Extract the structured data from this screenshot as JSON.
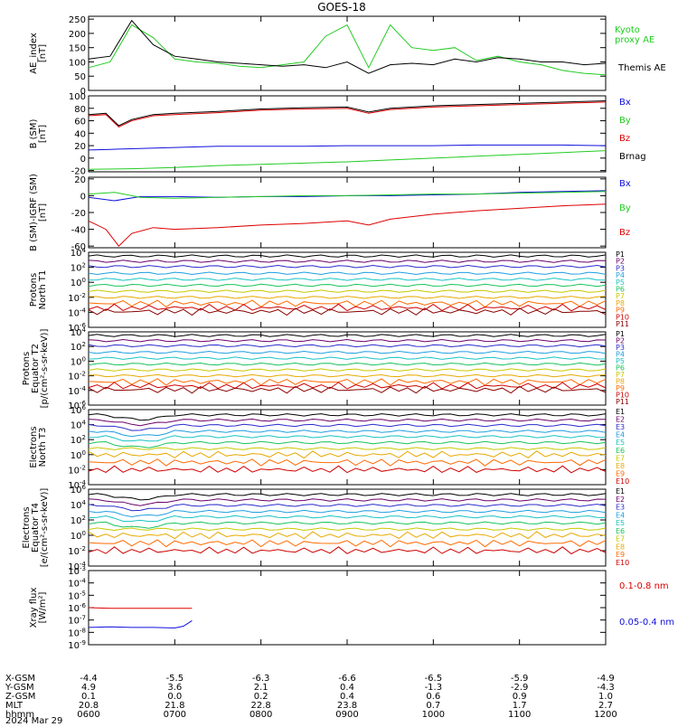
{
  "title": "GOES-18",
  "colors": {
    "black": "#000000",
    "green": "#22cc22",
    "blue": "#1010dd",
    "red": "#dd0000",
    "series": [
      "#000000",
      "#6a006a",
      "#2b2bcc",
      "#1f9fe0",
      "#19c3c3",
      "#19c35a",
      "#c8c800",
      "#e8a800",
      "#ff6a00",
      "#d00000",
      "#8a0000"
    ]
  },
  "bottom_axis": {
    "rows": [
      {
        "label": "X-GSM",
        "values": [
          "-4.4",
          "-5.5",
          "-6.3",
          "-6.6",
          "-6.5",
          "-5.9",
          "-4.9"
        ]
      },
      {
        "label": "Y-GSM",
        "values": [
          "4.9",
          "3.6",
          "2.1",
          "0.4",
          "-1.3",
          "-2.9",
          "-4.3"
        ]
      },
      {
        "label": "Z-GSM",
        "values": [
          "0.1",
          "0.0",
          "0.2",
          "0.4",
          "0.6",
          "0.9",
          "1.0"
        ]
      },
      {
        "label": "MLT",
        "values": [
          "20.8",
          "21.8",
          "22.8",
          "23.8",
          "0.7",
          "1.7",
          "2.7"
        ]
      },
      {
        "label": "hhmm",
        "values": [
          "0600",
          "0700",
          "0800",
          "0900",
          "1000",
          "1100",
          "1200"
        ]
      }
    ],
    "date": "2024 Mar 29"
  },
  "chart_data": [
    {
      "type": "line",
      "ylabel": [
        "AE_index",
        "[nT]"
      ],
      "ylim": [
        0,
        260
      ],
      "yticks": [
        "250",
        "200",
        "150",
        "100",
        "50",
        "0"
      ],
      "ytick_values": [
        250,
        200,
        150,
        100,
        50,
        0
      ],
      "legend": [
        {
          "text": "Kyoto",
          "color": "green"
        },
        {
          "text": "proxy AE",
          "color": "green"
        },
        {
          "text": "Themis AE",
          "color": "black"
        }
      ],
      "series": [
        {
          "name": "Kyoto proxy AE",
          "color": "green",
          "x": [
            6.0,
            6.25,
            6.5,
            6.75,
            7.0,
            7.25,
            7.5,
            7.75,
            8.0,
            8.25,
            8.5,
            8.75,
            9.0,
            9.25,
            9.5,
            9.75,
            10.0,
            10.25,
            10.5,
            10.75,
            11.0,
            11.25,
            11.5,
            11.75,
            12.0
          ],
          "y": [
            80,
            100,
            230,
            185,
            110,
            100,
            95,
            85,
            80,
            90,
            100,
            190,
            230,
            80,
            230,
            150,
            140,
            150,
            105,
            120,
            100,
            90,
            70,
            60,
            55
          ]
        },
        {
          "name": "Themis AE",
          "color": "black",
          "x": [
            6.0,
            6.25,
            6.5,
            6.75,
            7.0,
            7.25,
            7.5,
            7.75,
            8.0,
            8.25,
            8.5,
            8.75,
            9.0,
            9.25,
            9.5,
            9.75,
            10.0,
            10.25,
            10.5,
            10.75,
            11.0,
            11.25,
            11.5,
            11.75,
            12.0
          ],
          "y": [
            110,
            120,
            245,
            160,
            120,
            110,
            100,
            95,
            90,
            85,
            90,
            80,
            100,
            60,
            90,
            95,
            90,
            110,
            100,
            115,
            110,
            100,
            100,
            90,
            95
          ]
        }
      ]
    },
    {
      "type": "line",
      "ylabel": [
        "B (SM)",
        "[nT]"
      ],
      "ylim": [
        -22,
        100
      ],
      "yticks": [
        "100",
        "80",
        "60",
        "40",
        "20",
        "0",
        "-20"
      ],
      "ytick_values": [
        100,
        80,
        60,
        40,
        20,
        0,
        -20
      ],
      "legend": [
        {
          "text": "Bx",
          "color": "blue"
        },
        {
          "text": "By",
          "color": "green"
        },
        {
          "text": "Bz",
          "color": "red"
        },
        {
          "text": "Brnag",
          "color": "black"
        }
      ],
      "series": [
        {
          "name": "Bx",
          "color": "blue",
          "x": [
            6.0,
            6.25,
            6.5,
            7.0,
            7.5,
            8.0,
            8.5,
            9.0,
            9.5,
            10.0,
            10.5,
            11.0,
            11.5,
            12.0
          ],
          "y": [
            13,
            14,
            15,
            17,
            19,
            19,
            19,
            20,
            20,
            20,
            21,
            21,
            21,
            20
          ]
        },
        {
          "name": "By",
          "color": "green",
          "x": [
            6.0,
            6.5,
            7.0,
            7.5,
            8.0,
            8.5,
            9.0,
            9.5,
            10.0,
            10.5,
            11.0,
            11.5,
            12.0
          ],
          "y": [
            -18,
            -17,
            -15,
            -12,
            -10,
            -8,
            -6,
            -3,
            0,
            3,
            6,
            9,
            12
          ]
        },
        {
          "name": "Bz",
          "color": "red",
          "x": [
            6.0,
            6.2,
            6.35,
            6.5,
            6.75,
            7.0,
            7.5,
            8.0,
            8.5,
            9.0,
            9.25,
            9.5,
            10.0,
            10.5,
            11.0,
            11.5,
            12.0
          ],
          "y": [
            68,
            70,
            50,
            60,
            68,
            70,
            73,
            77,
            79,
            80,
            72,
            78,
            82,
            84,
            86,
            88,
            90
          ]
        },
        {
          "name": "Brnag",
          "color": "black",
          "x": [
            6.0,
            6.2,
            6.35,
            6.5,
            6.75,
            7.0,
            7.5,
            8.0,
            8.5,
            9.0,
            9.25,
            9.5,
            10.0,
            10.5,
            11.0,
            11.5,
            12.0
          ],
          "y": [
            70,
            72,
            52,
            62,
            70,
            72,
            75,
            79,
            81,
            82,
            74,
            80,
            84,
            86,
            88,
            90,
            92
          ]
        }
      ]
    },
    {
      "type": "line",
      "ylabel": [
        "B (SM)-IGRF (SM)",
        "[nT]"
      ],
      "ylim": [
        -62,
        22
      ],
      "yticks": [
        "20",
        "0",
        "-20",
        "-40",
        "-60"
      ],
      "ytick_values": [
        20,
        0,
        -20,
        -40,
        -60
      ],
      "legend": [
        {
          "text": "Bx",
          "color": "blue"
        },
        {
          "text": "By",
          "color": "green"
        },
        {
          "text": "Bz",
          "color": "red"
        }
      ],
      "series": [
        {
          "name": "Bx",
          "color": "blue",
          "x": [
            6.0,
            6.3,
            6.6,
            7.0,
            7.5,
            8.0,
            8.5,
            9.0,
            9.5,
            10.0,
            10.5,
            11.0,
            11.5,
            12.0
          ],
          "y": [
            -2,
            -6,
            -1,
            -1,
            -2,
            -1,
            -1,
            0,
            0,
            1,
            2,
            4,
            5,
            6
          ]
        },
        {
          "name": "By",
          "color": "green",
          "x": [
            6.0,
            6.3,
            6.6,
            7.0,
            7.5,
            8.0,
            8.5,
            9.0,
            9.5,
            10.0,
            10.5,
            11.0,
            11.5,
            12.0
          ],
          "y": [
            2,
            4,
            -2,
            -3,
            -2,
            -1,
            0,
            0,
            1,
            2,
            2,
            3,
            4,
            5
          ]
        },
        {
          "name": "Bz",
          "color": "red",
          "x": [
            6.0,
            6.2,
            6.35,
            6.5,
            6.75,
            7.0,
            7.5,
            8.0,
            8.5,
            9.0,
            9.25,
            9.5,
            10.0,
            10.5,
            11.0,
            11.5,
            12.0
          ],
          "y": [
            -30,
            -40,
            -60,
            -45,
            -38,
            -40,
            -38,
            -35,
            -33,
            -30,
            -35,
            -28,
            -22,
            -18,
            -15,
            -12,
            -10
          ]
        }
      ]
    },
    {
      "type": "line",
      "log": true,
      "ylabel": [
        "Protons",
        "North T1"
      ],
      "ylim": [
        -6,
        4
      ],
      "yticks": [
        "10^4",
        "10^2",
        "10^0",
        "10^-2",
        "10^-4",
        "10^-6"
      ],
      "ytick_values": [
        4,
        2,
        0,
        -2,
        -4,
        -6
      ],
      "legend": [
        "P1",
        "P2",
        "P3",
        "P4",
        "P5",
        "P6",
        "P7",
        "P8",
        "P9",
        "P10",
        "P11"
      ],
      "levels": [
        3.5,
        2.8,
        2.1,
        1.2,
        0.4,
        -0.4,
        -1.2,
        -2.0,
        -2.8,
        -3.4,
        -3.9
      ]
    },
    {
      "type": "line",
      "log": true,
      "ylabel": [
        "Protons",
        "Equator T2",
        "[p/(cm²-s-sr-keV)]"
      ],
      "ylim": [
        -6,
        4
      ],
      "yticks": [
        "10^4",
        "10^2",
        "10^0",
        "10^-2",
        "10^-4",
        "10^-6"
      ],
      "ytick_values": [
        4,
        2,
        0,
        -2,
        -4,
        -6
      ],
      "legend": [
        "P1",
        "P2",
        "P3",
        "P4",
        "P5",
        "P6",
        "P7",
        "P8",
        "P9",
        "P10",
        "P11"
      ],
      "levels": [
        3.5,
        2.8,
        2.1,
        1.2,
        0.4,
        -0.4,
        -1.2,
        -2.0,
        -2.8,
        -3.4,
        -3.9
      ]
    },
    {
      "type": "line",
      "log": true,
      "ylabel": [
        "Electrons",
        "North T3"
      ],
      "ylim": [
        -4,
        6
      ],
      "yticks": [
        "10^6",
        "10^4",
        "10^2",
        "10^0",
        "10^-2",
        "10^-4"
      ],
      "ytick_values": [
        6,
        4,
        2,
        0,
        -2,
        -4
      ],
      "legend": [
        "E1",
        "E2",
        "E3",
        "E4",
        "E5",
        "E6",
        "E7",
        "E8",
        "E9",
        "E10"
      ],
      "levels": [
        5.3,
        4.6,
        3.9,
        3.1,
        2.4,
        1.6,
        0.8,
        0.0,
        -1.0,
        -2.0
      ]
    },
    {
      "type": "line",
      "log": true,
      "ylabel": [
        "Electrons",
        "Equator T4",
        "[e/(cm²-s-sr-keV)]"
      ],
      "ylim": [
        -4,
        6
      ],
      "yticks": [
        "10^6",
        "10^4",
        "10^2",
        "10^0",
        "10^-2",
        "10^-4"
      ],
      "ytick_values": [
        6,
        4,
        2,
        0,
        -2,
        -4
      ],
      "legend": [
        "E1",
        "E2",
        "E3",
        "E4",
        "E5",
        "E6",
        "E7",
        "E8",
        "E9",
        "E10"
      ],
      "levels": [
        5.3,
        4.6,
        3.9,
        3.1,
        2.4,
        1.6,
        0.8,
        0.0,
        -1.0,
        -2.0
      ]
    },
    {
      "type": "line",
      "log": true,
      "ylabel": [
        "Xray flux",
        "[W/m²]"
      ],
      "ylim": [
        -9,
        -3
      ],
      "yticks": [
        "10^-3",
        "10^-4",
        "10^-5",
        "10^-6",
        "10^-7",
        "10^-8",
        "10^-9"
      ],
      "ytick_values": [
        -3,
        -4,
        -5,
        -6,
        -7,
        -8,
        -9
      ],
      "legend": [
        {
          "text": "0.1-0.8 nm",
          "color": "red"
        },
        {
          "text": "0.05-0.4 nm",
          "color": "blue"
        }
      ],
      "series": [
        {
          "name": "0.1-0.8 nm",
          "color": "red",
          "x": [
            6.0,
            6.25,
            6.5,
            6.75,
            7.0,
            7.2
          ],
          "y": [
            -6.0,
            -6.05,
            -6.05,
            -6.05,
            -6.05,
            -6.05
          ]
        },
        {
          "name": "0.05-0.4 nm",
          "color": "blue",
          "x": [
            6.0,
            6.25,
            6.5,
            6.75,
            7.0,
            7.1,
            7.2
          ],
          "y": [
            -7.6,
            -7.55,
            -7.6,
            -7.6,
            -7.65,
            -7.5,
            -7.05
          ]
        }
      ]
    }
  ]
}
